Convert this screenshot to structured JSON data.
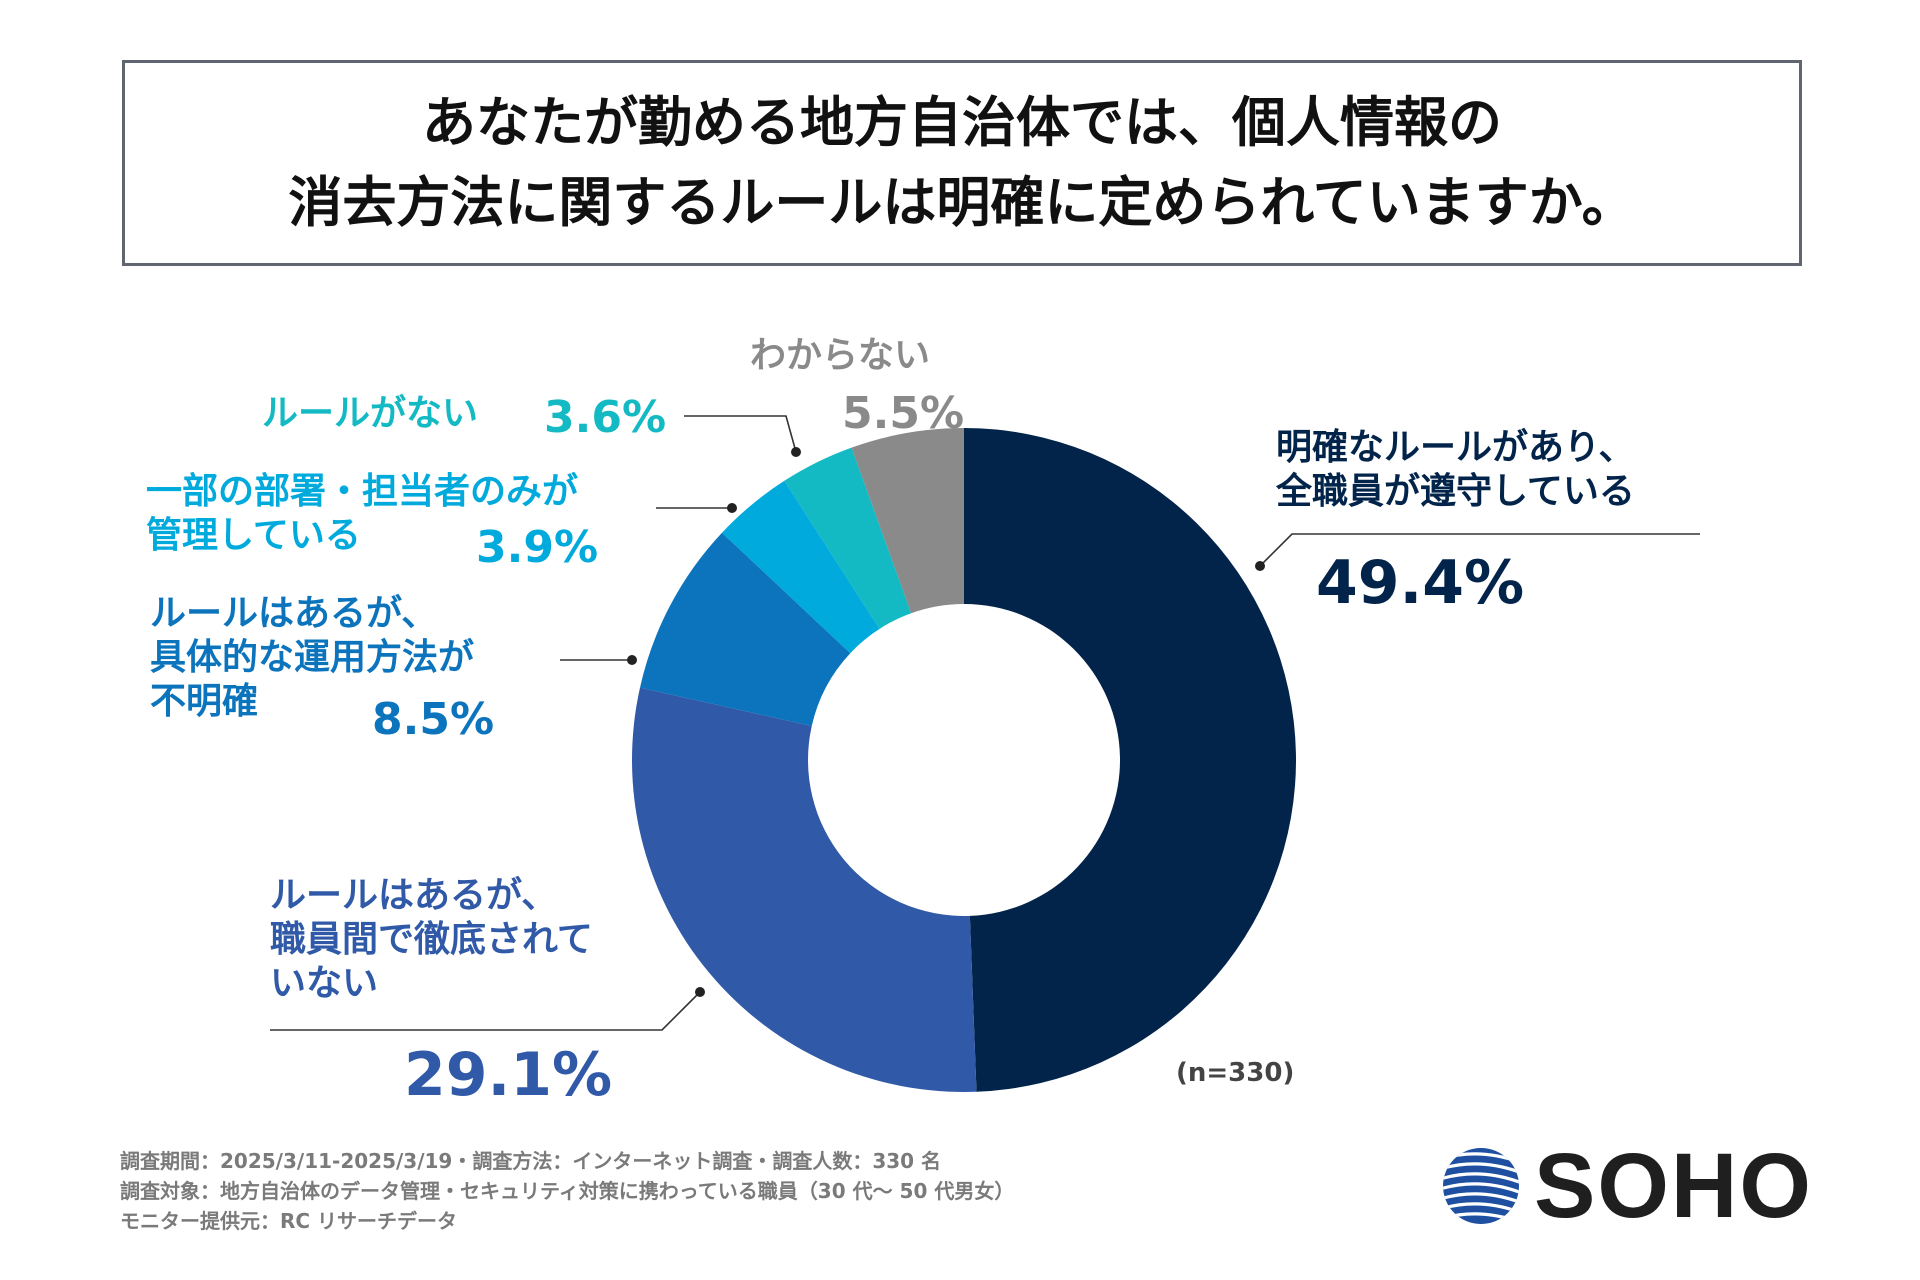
{
  "title": {
    "line1": "あなたが勤める地方自治体では、個人情報の",
    "line2": "消去方法に関するルールは明確に定められていますか。"
  },
  "chart_data": {
    "type": "pie",
    "donut": true,
    "title": "あなたが勤める地方自治体では、個人情報の消去方法に関するルールは明確に定められていますか。",
    "start": "12 o'clock, clockwise",
    "categories": [
      "明確なルールがあり、全職員が遵守している",
      "ルールはあるが、職員間で徹底されていない",
      "ルールはあるが、具体的な運用方法が不明確",
      "一部の部署・担当者のみが管理している",
      "ルールがない",
      "わからない"
    ],
    "values": [
      49.4,
      29.1,
      8.5,
      3.9,
      3.6,
      5.5
    ],
    "colors": [
      "#03244a",
      "#3059a8",
      "#0b74bd",
      "#00aadc",
      "#13b9c3",
      "#8a8a8a"
    ],
    "value_labels": [
      "49.4%",
      "29.1%",
      "8.5%",
      "3.9%",
      "3.6%",
      "5.5%"
    ],
    "sample_size": "(n=330)"
  },
  "labels": {
    "s0": {
      "line1": "明確なルールがあり、",
      "line2": "全職員が遵守している",
      "value": "49.4%"
    },
    "s1": {
      "line1": "ルールはあるが、",
      "line2": "職員間で徹底されて",
      "line3": "いない",
      "value": "29.1%"
    },
    "s2": {
      "line1": "ルールはあるが、",
      "line2": "具体的な運用方法が",
      "line3": "不明確",
      "value": "8.5%"
    },
    "s3": {
      "line1": "一部の部署・担当者のみが",
      "line2": "管理している",
      "value": "3.9%"
    },
    "s4": {
      "line1": "ルールがない",
      "value": "3.6%"
    },
    "s5": {
      "line1": "わからない",
      "value": "5.5%"
    }
  },
  "footer": {
    "line1": "調査期間：2025/3/11-2025/3/19・調査方法：インターネット調査・調査人数：330 名",
    "line2": "調査対象：地方自治体のデータ管理・セキュリティ対策に携わっている職員（30 代～ 50 代男女）",
    "line3": "モニター提供元：RC リサーチデータ"
  },
  "logo": {
    "text": "SOHO",
    "colors": [
      "#1e4fa0",
      "#ffffff"
    ]
  }
}
